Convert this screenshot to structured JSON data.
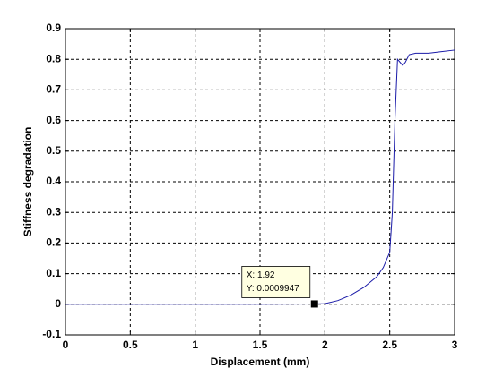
{
  "chart_data": {
    "type": "line",
    "xlabel": "Displacement (mm)",
    "ylabel": "Stiffness degradation",
    "x": [
      0,
      0.5,
      1,
      1.5,
      1.92,
      2,
      2.1,
      2.2,
      2.3,
      2.4,
      2.45,
      2.5,
      2.52,
      2.54,
      2.56,
      2.58,
      2.6,
      2.62,
      2.65,
      2.7,
      2.8,
      2.9,
      3
    ],
    "series": [
      {
        "color": "#1a1aa8",
        "values": [
          0,
          0,
          0,
          0,
          0.0009947,
          0.002,
          0.012,
          0.03,
          0.055,
          0.09,
          0.12,
          0.17,
          0.3,
          0.6,
          0.8,
          0.79,
          0.78,
          0.79,
          0.815,
          0.82,
          0.82,
          0.825,
          0.83
        ]
      }
    ],
    "xlim": [
      0,
      3
    ],
    "ylim": [
      -0.1,
      0.9
    ],
    "xticks": [
      0,
      0.5,
      1,
      1.5,
      2,
      2.5,
      3
    ],
    "yticks": [
      -0.1,
      0,
      0.1,
      0.2,
      0.3,
      0.4,
      0.5,
      0.6,
      0.7,
      0.8,
      0.9
    ],
    "grid": true,
    "datatip": {
      "x": 1.92,
      "y": 0.0009947,
      "x_label": "X: 1.92",
      "y_label": "Y: 0.0009947"
    }
  }
}
